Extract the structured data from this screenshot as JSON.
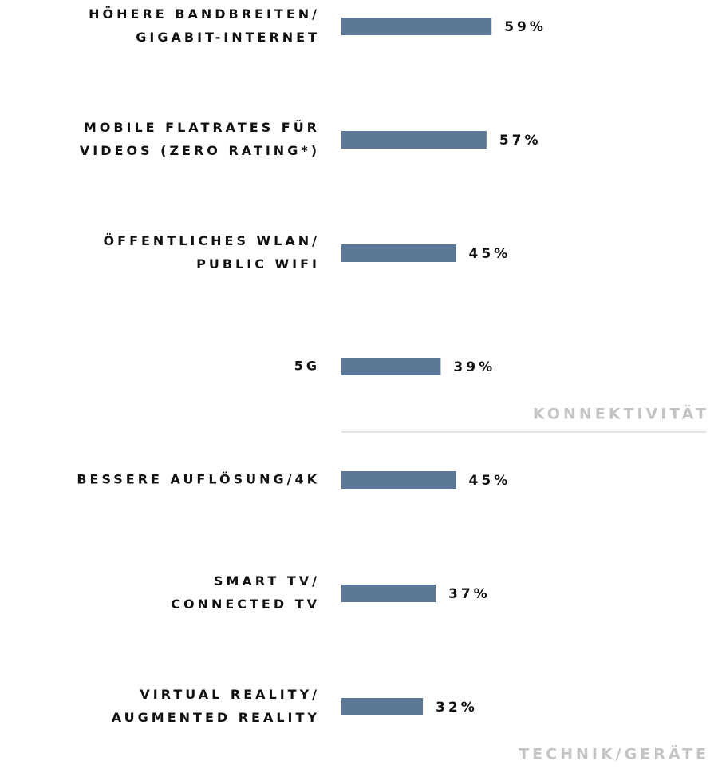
{
  "chart_data": {
    "type": "bar",
    "color": "#5b7896",
    "groups": [
      {
        "name": "KONNEKTIVITÄT",
        "categories": [
          [
            "HÖHERE BANDBREITEN/",
            "GIGABIT-INTERNET"
          ],
          [
            "MOBILE FLATRATES FÜR",
            "VIDEOS (ZERO RATING*)"
          ],
          [
            "ÖFFENTLICHES WLAN/",
            "PUBLIC WIFI"
          ],
          [
            "5G"
          ]
        ],
        "values": [
          59,
          57,
          45,
          39
        ],
        "value_labels": [
          "59%",
          "57%",
          "45%",
          "39%"
        ]
      },
      {
        "name": "TECHNIK/GERÄTE",
        "categories": [
          [
            "BESSERE AUFLÖSUNG/4K"
          ],
          [
            "SMART TV/",
            "CONNECTED TV"
          ],
          [
            "VIRTUAL REALITY/",
            "AUGMENTED REALITY"
          ]
        ],
        "values": [
          45,
          37,
          32
        ],
        "value_labels": [
          "45%",
          "37%",
          "32%"
        ]
      }
    ]
  }
}
